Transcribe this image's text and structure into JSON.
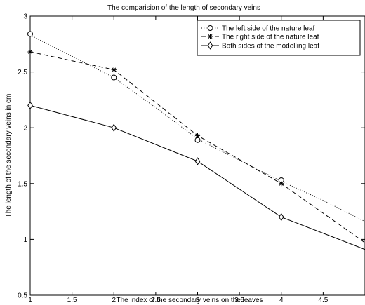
{
  "chart_data": {
    "type": "line",
    "title": "The comparision of the length of secondary veins",
    "xlabel": "The index of the secondary veins on the leaves",
    "ylabel": "The length of the secondary veins in cm",
    "xlim": [
      1,
      5
    ],
    "ylim": [
      0.5,
      3
    ],
    "xticks": [
      1,
      1.5,
      2,
      2.5,
      3,
      3.5,
      4,
      4.5
    ],
    "xtick_labels": [
      "1",
      "1.5",
      "2",
      "2.5",
      "3",
      "3.5",
      "4",
      "4.5"
    ],
    "yticks": [
      0.5,
      1,
      1.5,
      2,
      2.5,
      3
    ],
    "ytick_labels": [
      "0.5",
      "1",
      "1.5",
      "2",
      "2.5",
      "3"
    ],
    "grid": false,
    "legend_position": "top-right",
    "series": [
      {
        "name": "The left side of the nature leaf",
        "line_style": "dotted",
        "marker": "circle",
        "color": "#000000",
        "curve_x": [
          1,
          1.5,
          2,
          2.5,
          3,
          3.5,
          4,
          4.5,
          5
        ],
        "curve_y": [
          2.83,
          2.64,
          2.45,
          2.18,
          1.9,
          1.71,
          1.52,
          1.35,
          1.16
        ],
        "marker_x": [
          1,
          2,
          3,
          4
        ],
        "marker_y": [
          2.84,
          2.45,
          1.89,
          1.53
        ]
      },
      {
        "name": "The right side of the nature leaf",
        "line_style": "dashed",
        "marker": "star",
        "color": "#000000",
        "curve_x": [
          1,
          2,
          3,
          4,
          5
        ],
        "curve_y": [
          2.68,
          2.52,
          1.93,
          1.5,
          0.97
        ],
        "marker_x": [
          1,
          2,
          3,
          4
        ],
        "marker_y": [
          2.68,
          2.52,
          1.93,
          1.5
        ]
      },
      {
        "name": "Both sides of the modelling leaf",
        "line_style": "solid",
        "marker": "diamond",
        "color": "#000000",
        "curve_x": [
          1,
          2,
          3,
          4,
          5
        ],
        "curve_y": [
          2.2,
          2.0,
          1.7,
          1.2,
          0.91
        ],
        "marker_x": [
          1,
          2,
          3,
          4
        ],
        "marker_y": [
          2.2,
          2.0,
          1.7,
          1.2
        ]
      }
    ]
  }
}
